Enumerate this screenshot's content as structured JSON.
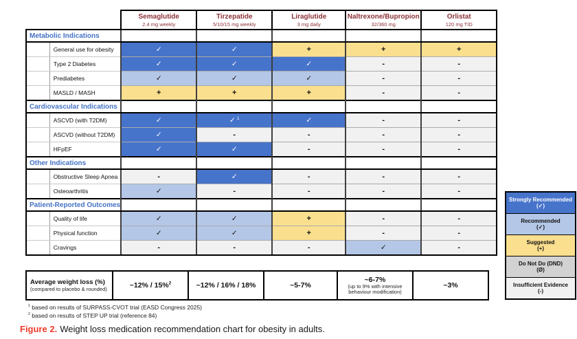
{
  "figure": {
    "caption_label": "Figure 2.",
    "caption_text": "Weight loss medication recommendation chart for obesity in adults."
  },
  "table": {
    "columns": [
      {
        "name": "Semaglutide",
        "dose": "2.4 mg weekly"
      },
      {
        "name": "Tirzepatide",
        "dose": "5/10/15 mg weekly"
      },
      {
        "name": "Liraglutide",
        "dose": "3 mg daily"
      },
      {
        "name": "Naltrexone/Bupropion",
        "dose": "32/360 mg"
      },
      {
        "name": "Orlistat",
        "dose": "120 mg TID"
      }
    ],
    "sections": [
      {
        "title": "Metabolic Indications",
        "rows": [
          {
            "label": "General use for obesity",
            "cells": [
              "SR",
              "SR",
              "S",
              "S",
              "S"
            ]
          },
          {
            "label": "Type 2 Diabetes",
            "cells": [
              "SR",
              "SR",
              "SR",
              "IE",
              "IE"
            ]
          },
          {
            "label": "Prediabetes",
            "cells": [
              "R",
              "R",
              "R",
              "IE",
              "IE"
            ]
          },
          {
            "label": "MASLD / MASH",
            "cells": [
              "S",
              "S",
              "S",
              "IE",
              "IE"
            ]
          }
        ]
      },
      {
        "title": "Cardiovascular Indications",
        "rows": [
          {
            "label": "ASCVD (with T2DM)",
            "cells": [
              "SR",
              "SR:1",
              "SR",
              "IE",
              "IE"
            ]
          },
          {
            "label": "ASCVD (without T2DM)",
            "cells": [
              "SR",
              "IE",
              "IE",
              "IE",
              "IE"
            ]
          },
          {
            "label": "HFpEF",
            "cells": [
              "SR",
              "SR",
              "IE",
              "IE",
              "IE"
            ]
          }
        ]
      },
      {
        "title": "Other Indications",
        "rows": [
          {
            "label": "Obstructive Sleep Apnea",
            "cells": [
              "IE",
              "SR",
              "IE",
              "IE",
              "IE"
            ]
          },
          {
            "label": "Osteoarthritis",
            "cells": [
              "R",
              "IE",
              "IE",
              "IE",
              "IE"
            ]
          }
        ]
      },
      {
        "title": "Patient-Reported Outcomes",
        "rows": [
          {
            "label": "Quality of life",
            "cells": [
              "R",
              "R",
              "S",
              "IE",
              "IE"
            ]
          },
          {
            "label": "Physical function",
            "cells": [
              "R",
              "R",
              "S",
              "IE",
              "IE"
            ]
          },
          {
            "label": "Cravings",
            "cells": [
              "IE",
              "IE",
              "IE",
              "R",
              "IE"
            ]
          }
        ]
      }
    ],
    "average_row": {
      "title": "Average weight loss (%)",
      "subtitle": "(compared to placebo & rounded)",
      "values": [
        {
          "text": "~12% / 15%",
          "sup": "2"
        },
        {
          "text": "~12% / 16% / 18%"
        },
        {
          "text": "~5-7%"
        },
        {
          "text": "~6-7%",
          "note": "(up to 9% with intensive behaviour modification)"
        },
        {
          "text": "~3%"
        }
      ]
    }
  },
  "symbols": {
    "SR": {
      "glyph": "✓",
      "meaning": "Strongly Recommended"
    },
    "R": {
      "glyph": "✓",
      "meaning": "Recommended"
    },
    "S": {
      "glyph": "+",
      "meaning": "Suggested"
    },
    "DND": {
      "glyph": "Ø",
      "meaning": "Do Not Do (DND)"
    },
    "IE": {
      "glyph": "-",
      "meaning": "Insufficient Evidence"
    }
  },
  "legend": {
    "items": [
      {
        "label": "Strongly Recommended",
        "symbol": "(✓)",
        "code": "SR"
      },
      {
        "label": "Recommended",
        "symbol": "(✓)",
        "code": "R"
      },
      {
        "label": "Suggested",
        "symbol": "(+)",
        "code": "S"
      },
      {
        "label": "Do Not Do (DND)",
        "symbol": "(Ø)",
        "code": "DND"
      },
      {
        "label": "Insufficient Evidence",
        "symbol": "(-)",
        "code": "IE"
      }
    ]
  },
  "footnotes": [
    {
      "sup": "1",
      "text": "based on results of SURPASS-CVOT trial (EASD Congress 2025)"
    },
    {
      "sup": "2",
      "text": "based on results of STEP UP trial (reference 84)"
    }
  ],
  "colors": {
    "strongly_recommended": "#4774CB",
    "recommended": "#B4C7E7",
    "suggested": "#FADF8E",
    "do_not_do": "#D2D2D2",
    "insufficient_evidence": "#F1F1F1",
    "header_text": "#8B3137",
    "section_text": "#4472C4",
    "figure_label": "#ED3B2A"
  }
}
